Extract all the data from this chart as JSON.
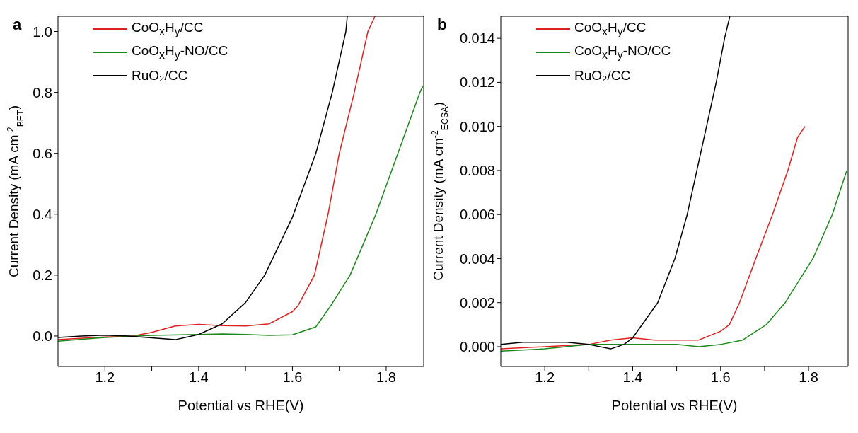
{
  "chart_data": [
    {
      "type": "line",
      "title": "a",
      "xlabel": "Potential vs RHE(V)",
      "ylabel": "Current Density (mA cm$^{-2}$$_{BET}$)",
      "xlim": [
        1.1,
        1.88
      ],
      "ylim": [
        -0.1,
        1.05
      ],
      "xticks": [
        1.2,
        {
          "value": 1.3,
          "label": null
        },
        1.4,
        {
          "value": 1.5,
          "label": null
        },
        1.6,
        {
          "value": 1.7,
          "label": null
        },
        1.8
      ],
      "yticks": [
        {
          "value": 0,
          "label": "0.0"
        },
        0.2,
        0.4,
        0.6,
        0.8,
        {
          "value": 1,
          "label": "1.0"
        }
      ],
      "legend": "top left",
      "grid": false,
      "marker": "none",
      "line_style": "solid",
      "series": [
        {
          "name": "CoO$_{x}$H$_{y}$/CC",
          "color": "#e02020",
          "x": [
            1.1,
            1.2,
            1.26,
            1.3,
            1.35,
            1.4,
            1.45,
            1.5,
            1.55,
            1.6,
            1.612,
            1.647,
            1.676,
            1.7,
            1.732,
            1.761,
            1.776
          ],
          "values": [
            -0.012,
            -0.003,
            0.0,
            0.012,
            0.033,
            0.038,
            0.034,
            0.033,
            0.04,
            0.08,
            0.1,
            0.2,
            0.4,
            0.6,
            0.8,
            1.0,
            1.05
          ]
        },
        {
          "name": "CoO$_{x}$H$_{y}$-NO/CC",
          "color": "#1a8a1a",
          "x": [
            1.1,
            1.2,
            1.3,
            1.4,
            1.45,
            1.5,
            1.55,
            1.6,
            1.65,
            1.682,
            1.723,
            1.778,
            1.825,
            1.872,
            1.878
          ],
          "values": [
            -0.017,
            -0.005,
            0.002,
            0.005,
            0.007,
            0.005,
            0.002,
            0.004,
            0.03,
            0.1,
            0.2,
            0.4,
            0.6,
            0.8,
            0.82
          ]
        },
        {
          "name": "RuO₂/CC",
          "color": "#000000",
          "x": [
            1.1,
            1.15,
            1.2,
            1.25,
            1.3,
            1.35,
            1.4,
            1.45,
            1.5,
            1.541,
            1.6,
            1.65,
            1.685,
            1.714,
            1.717
          ],
          "values": [
            -0.005,
            0.0,
            0.003,
            0.0,
            -0.006,
            -0.012,
            0.005,
            0.04,
            0.11,
            0.2,
            0.39,
            0.6,
            0.8,
            1.0,
            1.05
          ]
        }
      ]
    },
    {
      "type": "line",
      "title": "b",
      "xlabel": "Potential vs RHE(V)",
      "ylabel": "Current Density (mA cm$^{-2}$$_{ECSA}$)",
      "xlim": [
        1.1,
        1.89
      ],
      "ylim": [
        -0.0009,
        0.015
      ],
      "xticks": [
        1.2,
        {
          "value": 1.3,
          "label": null
        },
        1.4,
        {
          "value": 1.5,
          "label": null
        },
        1.6,
        {
          "value": 1.7,
          "label": null
        },
        1.8
      ],
      "yticks": [
        {
          "value": 0,
          "label": "0.000"
        },
        0.002,
        0.004,
        0.006,
        0.008,
        {
          "value": 0.01,
          "label": "0.010"
        },
        0.012,
        0.014
      ],
      "legend": "top left",
      "grid": false,
      "marker": "none",
      "line_style": "solid",
      "series": [
        {
          "name": "CoO$_{x}$H$_{y}$/CC",
          "color": "#e02020",
          "x": [
            1.1,
            1.2,
            1.3,
            1.35,
            1.4,
            1.45,
            1.5,
            1.55,
            1.6,
            1.62,
            1.643,
            1.68,
            1.718,
            1.753,
            1.775,
            1.792
          ],
          "values": [
            -0.0001,
            0.0,
            0.0001,
            0.0003,
            0.0004,
            0.0003,
            0.0003,
            0.0003,
            0.0007,
            0.001,
            0.002,
            0.004,
            0.006,
            0.008,
            0.0095,
            0.01
          ]
        },
        {
          "name": "CoO$_{x}$H$_{y}$-NO/CC",
          "color": "#1a8a1a",
          "x": [
            1.1,
            1.2,
            1.3,
            1.4,
            1.45,
            1.5,
            1.55,
            1.6,
            1.65,
            1.704,
            1.747,
            1.81,
            1.854,
            1.887
          ],
          "values": [
            -0.0002,
            -0.0001,
            0.0001,
            0.0001,
            0.0001,
            0.0001,
            0.0,
            0.0001,
            0.0003,
            0.001,
            0.002,
            0.004,
            0.006,
            0.008
          ]
        },
        {
          "name": "RuO₂/CC",
          "color": "#000000",
          "x": [
            1.1,
            1.15,
            1.2,
            1.25,
            1.3,
            1.35,
            1.38,
            1.4,
            1.457,
            1.496,
            1.524,
            1.546,
            1.568,
            1.59,
            1.609,
            1.621
          ],
          "values": [
            0.0001,
            0.0002,
            0.0002,
            0.0002,
            0.0001,
            -0.0001,
            0.0001,
            0.0004,
            0.002,
            0.004,
            0.006,
            0.008,
            0.01,
            0.012,
            0.014,
            0.015
          ]
        }
      ]
    }
  ]
}
